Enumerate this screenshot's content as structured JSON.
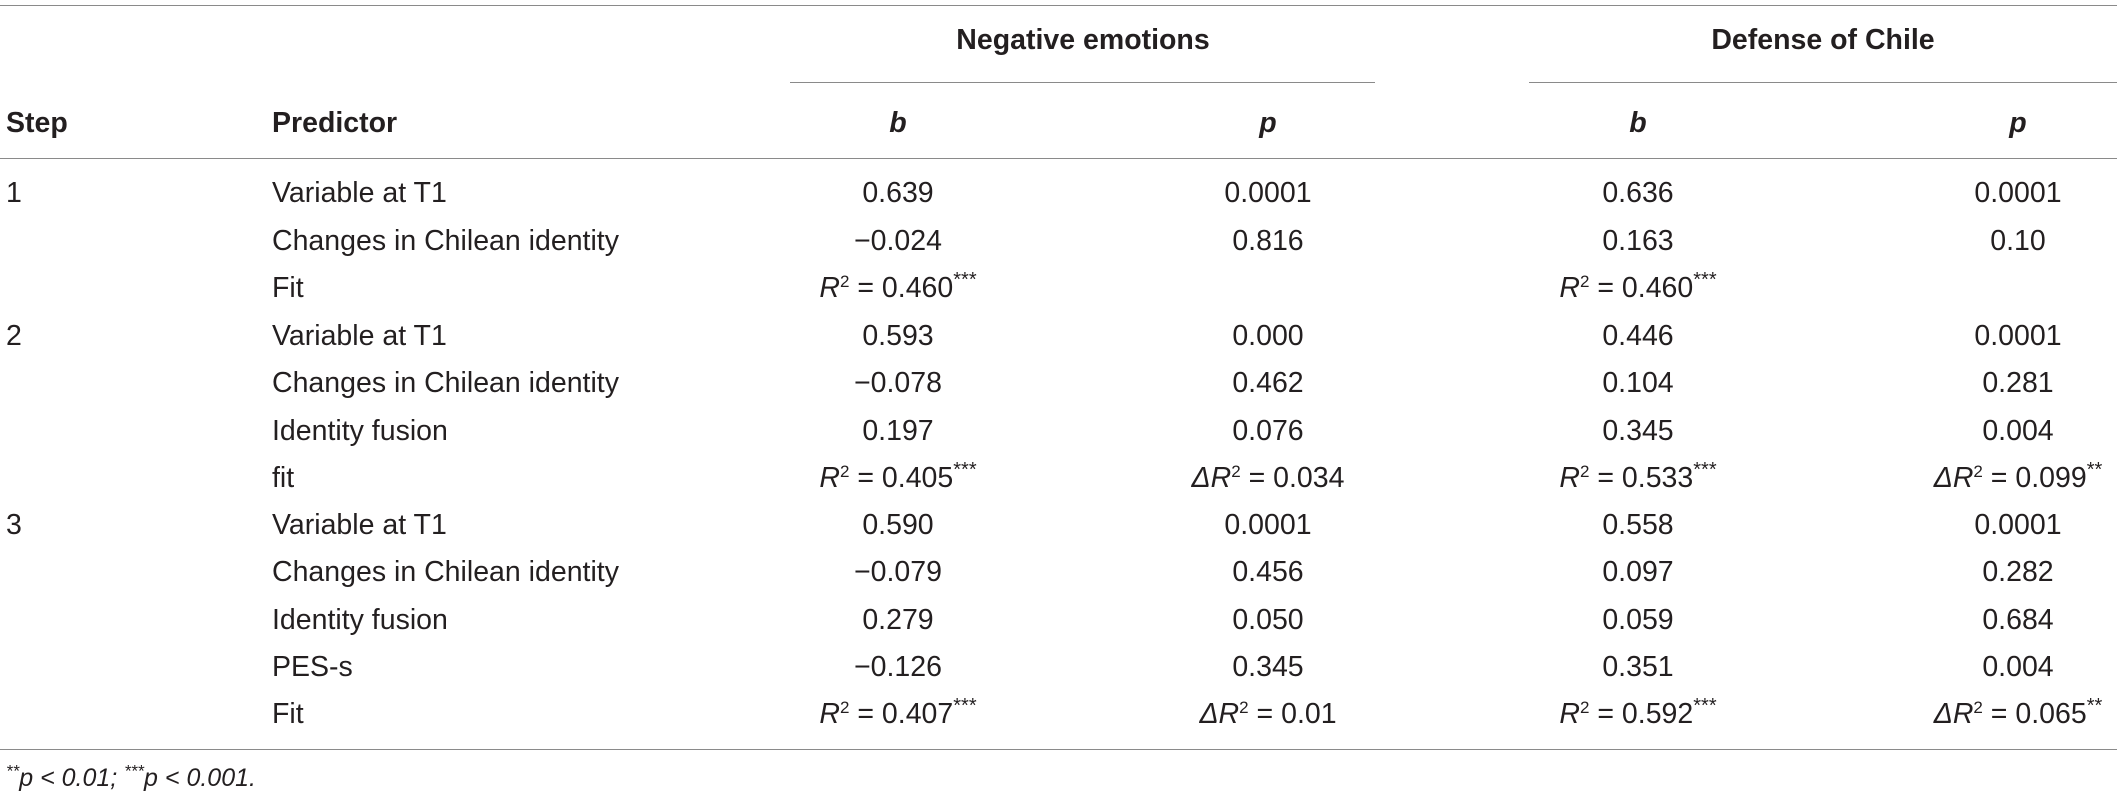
{
  "header": {
    "group_negative": "Negative emotions",
    "group_defense": "Defense of Chile",
    "col_step": "Step",
    "col_predictor": "Predictor",
    "col_b": "b",
    "col_p": "p"
  },
  "rows": [
    {
      "step": "1",
      "predictor": "Variable at T1",
      "neg_b": "0.639",
      "neg_p": "0.0001",
      "def_b": "0.636",
      "def_p": "0.0001"
    },
    {
      "step": "",
      "predictor": "Changes in Chilean identity",
      "neg_b": "−0.024",
      "neg_p": "0.816",
      "def_b": "0.163",
      "def_p": "0.10"
    },
    {
      "step": "",
      "predictor": "Fit",
      "neg_b_r2": "R",
      "neg_b_val": " = 0.460",
      "neg_b_stars": "***",
      "def_b_r2": "R",
      "def_b_val": " = 0.460",
      "def_b_stars": "***"
    },
    {
      "step": "2",
      "predictor": "Variable at T1",
      "neg_b": "0.593",
      "neg_p": "0.000",
      "def_b": "0.446",
      "def_p": "0.0001"
    },
    {
      "step": "",
      "predictor": "Changes in Chilean identity",
      "neg_b": "−0.078",
      "neg_p": "0.462",
      "def_b": "0.104",
      "def_p": "0.281"
    },
    {
      "step": "",
      "predictor": "Identity fusion",
      "neg_b": "0.197",
      "neg_p": "0.076",
      "def_b": "0.345",
      "def_p": "0.004"
    },
    {
      "step": "",
      "predictor": "fit",
      "neg_b_val": " = 0.405",
      "neg_b_stars": "***",
      "neg_p_val": " = 0.034",
      "neg_p_stars": "",
      "def_b_val": " = 0.533",
      "def_b_stars": "***",
      "def_p_val": " = 0.099",
      "def_p_stars": "**"
    },
    {
      "step": "3",
      "predictor": "Variable at T1",
      "neg_b": "0.590",
      "neg_p": "0.0001",
      "def_b": "0.558",
      "def_p": "0.0001"
    },
    {
      "step": "",
      "predictor": "Changes in Chilean identity",
      "neg_b": "−0.079",
      "neg_p": "0.456",
      "def_b": "0.097",
      "def_p": "0.282"
    },
    {
      "step": "",
      "predictor": "Identity fusion",
      "neg_b": "0.279",
      "neg_p": "0.050",
      "def_b": "0.059",
      "def_p": "0.684"
    },
    {
      "step": "",
      "predictor": "PES-s",
      "neg_b": "−0.126",
      "neg_p": "0.345",
      "def_b": "0.351",
      "def_p": "0.004"
    },
    {
      "step": "",
      "predictor": "Fit",
      "neg_b_val": " = 0.407",
      "neg_b_stars": "***",
      "neg_p_val": " = 0.01",
      "neg_p_stars": "",
      "def_b_val": " = 0.592",
      "def_b_stars": "***",
      "def_p_val": " = 0.065",
      "def_p_stars": "**"
    }
  ],
  "symbols": {
    "r": "R",
    "delta_r": "ΔR",
    "squared": "2"
  },
  "footnote": {
    "stars2": "**",
    "part1": "p < 0.01; ",
    "stars3": "***",
    "part2": "p < 0.001."
  }
}
